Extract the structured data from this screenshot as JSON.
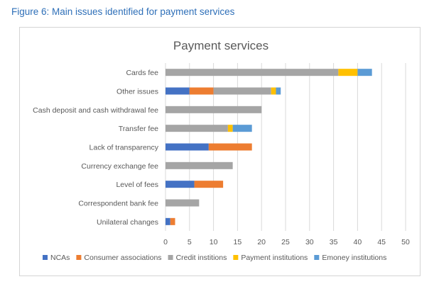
{
  "figure_caption": "Figure 6: Main issues identified for payment services",
  "colors": {
    "NCAs": "#4472c4",
    "Consumer associations": "#ed7d31",
    "Credit institions": "#a5a5a5",
    "Payment institutions": "#ffc000",
    "Emoney institutions": "#5b9bd5",
    "gridline": "#d9d9d9",
    "text": "#595959"
  },
  "chart_data": {
    "type": "bar",
    "orientation": "horizontal",
    "stacked": true,
    "title": "Payment services",
    "xlabel": "",
    "ylabel": "",
    "xlim": [
      0,
      50
    ],
    "x_ticks": [
      0,
      5,
      10,
      15,
      20,
      25,
      30,
      35,
      40,
      45,
      50
    ],
    "grid": "vertical",
    "legend_position": "bottom",
    "categories": [
      "Cards fee",
      "Other issues",
      "Cash deposit and cash withdrawal fee",
      "Transfer fee",
      "Lack of transparency",
      "Currency exchange fee",
      "Level of fees",
      "Correspondent bank fee",
      "Unilateral changes"
    ],
    "series": [
      {
        "name": "NCAs",
        "values": [
          0,
          5,
          0,
          0,
          9,
          0,
          6,
          0,
          1
        ]
      },
      {
        "name": "Consumer associations",
        "values": [
          0,
          5,
          0,
          0,
          9,
          0,
          6,
          0,
          1
        ]
      },
      {
        "name": "Credit institions",
        "values": [
          36,
          12,
          20,
          13,
          0,
          14,
          0,
          7,
          0
        ]
      },
      {
        "name": "Payment institutions",
        "values": [
          4,
          1,
          0,
          1,
          0,
          0,
          0,
          0,
          0
        ]
      },
      {
        "name": "Emoney institutions",
        "values": [
          3,
          1,
          0,
          4,
          0,
          0,
          0,
          0,
          0
        ]
      }
    ]
  }
}
